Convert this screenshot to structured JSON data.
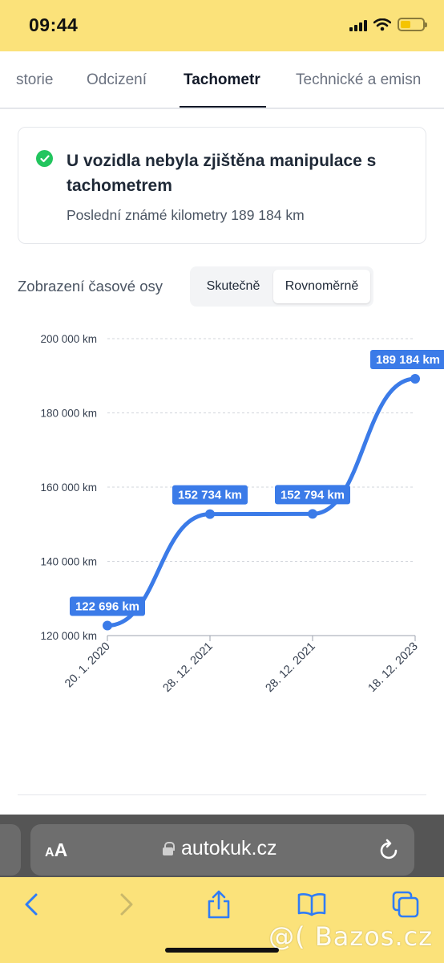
{
  "status_bar": {
    "time": "09:44"
  },
  "tabs": [
    {
      "label": "Historie",
      "visible_label": "storie"
    },
    {
      "label": "Odcizení"
    },
    {
      "label": "Tachometr",
      "active": true
    },
    {
      "label": "Technické a emisn"
    }
  ],
  "status_card": {
    "icon": "check-circle-icon",
    "title": "U vozidla nebyla zjištěna manipulace s tachometrem",
    "subtitle": "Poslední známé kilometry 189 184 km"
  },
  "timeline": {
    "label": "Zobrazení časové osy",
    "options": [
      {
        "label": "Skutečně",
        "selected": false
      },
      {
        "label": "Rovnoměrně",
        "selected": true
      }
    ]
  },
  "chart_data": {
    "type": "line",
    "x": [
      "20. 1. 2020",
      "28. 12. 2021",
      "28. 12. 2021",
      "18. 12. 2023"
    ],
    "series": [
      {
        "values": [
          122696,
          152734,
          152794,
          189184
        ]
      }
    ],
    "point_labels": [
      "122 696 km",
      "152 734 km",
      "152 794 km",
      "189 184 km"
    ],
    "y_ticks": [
      "120 000 km",
      "140 000 km",
      "160 000 km",
      "180 000 km",
      "200 000 km"
    ],
    "ylim": [
      120000,
      200000
    ],
    "grid": true,
    "line_color": "#3b7be8",
    "label_bg": "#3b7be8"
  },
  "browser": {
    "text_size": "AA",
    "url": "autokuk.cz"
  },
  "watermark": "@( Bazos.cz"
}
